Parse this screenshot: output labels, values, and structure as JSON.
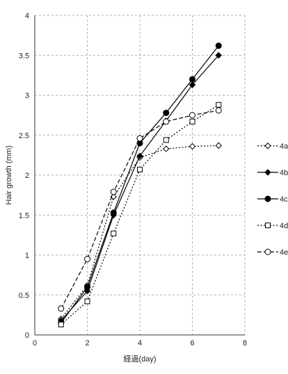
{
  "chart_data": {
    "type": "line",
    "xlabel": "経過(day)",
    "ylabel": "Hair growth (mm)",
    "xlim": [
      0,
      8
    ],
    "ylim": [
      0,
      4
    ],
    "x_ticks": [
      0,
      2,
      4,
      6,
      8
    ],
    "y_ticks": [
      0,
      0.5,
      1,
      1.5,
      2,
      2.5,
      3,
      3.5,
      4
    ],
    "grid": "dashed",
    "legend_position": "right",
    "series": [
      {
        "name": "4a",
        "marker": "diamond-open",
        "line": "dotted",
        "x": [
          1,
          2,
          3,
          4,
          5,
          6,
          7
        ],
        "y": [
          0.2,
          0.62,
          1.73,
          2.22,
          2.33,
          2.36,
          2.37
        ]
      },
      {
        "name": "4b",
        "marker": "diamond-filled",
        "line": "solid",
        "x": [
          1,
          2,
          3,
          4,
          5,
          6,
          7
        ],
        "y": [
          0.18,
          0.55,
          1.5,
          2.24,
          2.68,
          3.13,
          3.5
        ]
      },
      {
        "name": "4c",
        "marker": "circle-filled",
        "line": "solid",
        "x": [
          1,
          2,
          3,
          4,
          5,
          6,
          7
        ],
        "y": [
          0.15,
          0.6,
          1.53,
          2.4,
          2.78,
          3.2,
          3.62
        ]
      },
      {
        "name": "4d",
        "marker": "square-open",
        "line": "dotted",
        "x": [
          1,
          2,
          3,
          4,
          5,
          6,
          7
        ],
        "y": [
          0.13,
          0.42,
          1.27,
          2.07,
          2.44,
          2.67,
          2.88
        ]
      },
      {
        "name": "4e",
        "marker": "circle-open",
        "line": "dashed",
        "x": [
          1,
          2,
          3,
          4,
          5,
          6,
          7
        ],
        "y": [
          0.33,
          0.95,
          1.79,
          2.46,
          2.67,
          2.75,
          2.81
        ]
      }
    ]
  }
}
